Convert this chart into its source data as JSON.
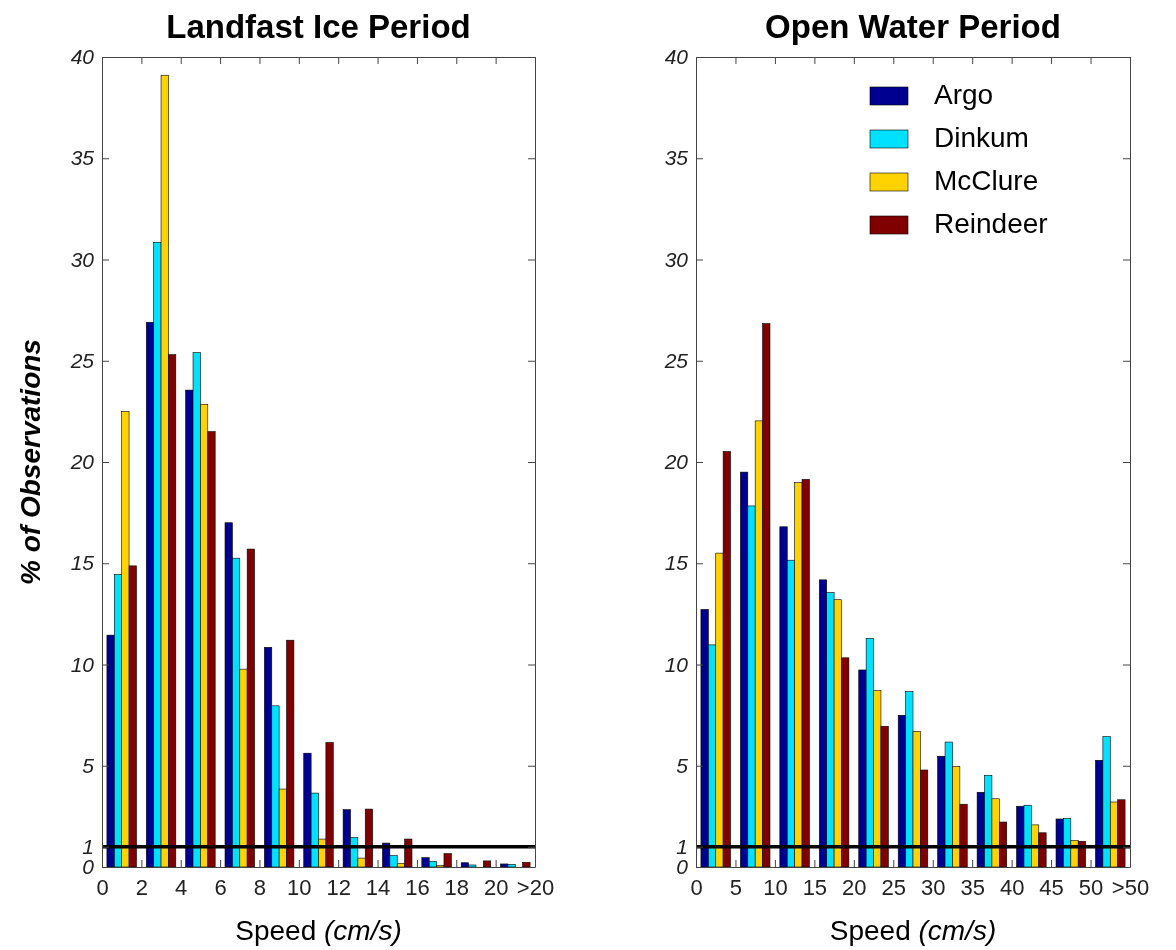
{
  "chart_data": [
    {
      "type": "bar",
      "title": "Landfast Ice Period",
      "xlabel": "Speed (cm/s)",
      "ylabel": "% of Observations",
      "x": [
        1,
        3,
        5,
        7,
        9,
        11,
        13,
        15,
        17,
        19,
        21
      ],
      "series": [
        {
          "color": "#000090",
          "values": [
            11.45,
            26.9,
            23.55,
            17.0,
            10.85,
            5.62,
            2.83,
            1.18,
            0.46,
            0.21,
            0.15
          ]
        },
        {
          "color": "#00e0ff",
          "values": [
            14.45,
            30.85,
            25.4,
            15.25,
            7.96,
            3.65,
            1.46,
            0.56,
            0.28,
            0.1,
            0.13
          ]
        },
        {
          "color": "#ffd200",
          "values": [
            22.5,
            39.1,
            22.85,
            9.77,
            3.85,
            1.38,
            0.44,
            0.18,
            0.07,
            null,
            null
          ]
        },
        {
          "color": "#800000",
          "values": [
            14.87,
            25.3,
            21.5,
            15.7,
            11.2,
            6.15,
            2.86,
            1.38,
            0.66,
            0.3,
            0.23
          ]
        }
      ],
      "xlim": [
        0,
        22
      ],
      "xticks": [
        0,
        2,
        4,
        6,
        8,
        10,
        12,
        14,
        16,
        18,
        20,
        {
          "value": 22,
          "label": ">20"
        }
      ],
      "ylim": [
        0,
        40
      ],
      "yticks": [
        0,
        1,
        5,
        10,
        15,
        20,
        25,
        30,
        35,
        40
      ],
      "ref_lines": [
        {
          "axis": "y",
          "value": 1,
          "color": "#000000"
        }
      ],
      "legend": false
    },
    {
      "type": "bar",
      "title": "Open Water Period",
      "xlabel": "Speed (cm/s)",
      "x": [
        2.5,
        7.5,
        12.5,
        17.5,
        22.5,
        27.5,
        32.5,
        37.5,
        42.5,
        47.5,
        52.5
      ],
      "series": [
        {
          "name": "Argo",
          "color": "#000090",
          "values": [
            12.72,
            19.5,
            16.8,
            14.18,
            9.73,
            7.49,
            5.47,
            3.69,
            3.0,
            2.37,
            5.27
          ]
        },
        {
          "name": "Dinkum",
          "color": "#00e0ff",
          "values": [
            10.97,
            17.83,
            15.15,
            13.55,
            11.29,
            8.66,
            6.17,
            4.53,
            3.05,
            2.4,
            6.44
          ]
        },
        {
          "name": "McClure",
          "color": "#ffd200",
          "values": [
            15.5,
            22.03,
            18.98,
            13.2,
            8.71,
            6.7,
            4.97,
            3.37,
            2.08,
            1.31,
            3.21
          ]
        },
        {
          "name": "Reindeer",
          "color": "#800000",
          "values": [
            20.52,
            26.83,
            19.14,
            10.33,
            6.95,
            4.79,
            3.1,
            2.22,
            1.69,
            1.27,
            3.32
          ]
        }
      ],
      "xlim": [
        0,
        55
      ],
      "xticks": [
        0,
        5,
        10,
        15,
        20,
        25,
        30,
        35,
        40,
        45,
        50,
        {
          "value": 55,
          "label": ">50"
        }
      ],
      "ylim": [
        0,
        40
      ],
      "yticks": [
        0,
        1,
        5,
        10,
        15,
        20,
        25,
        30,
        35,
        40
      ],
      "ref_lines": [
        {
          "axis": "y",
          "value": 1,
          "color": "#000000"
        }
      ],
      "legend": "top right"
    }
  ]
}
